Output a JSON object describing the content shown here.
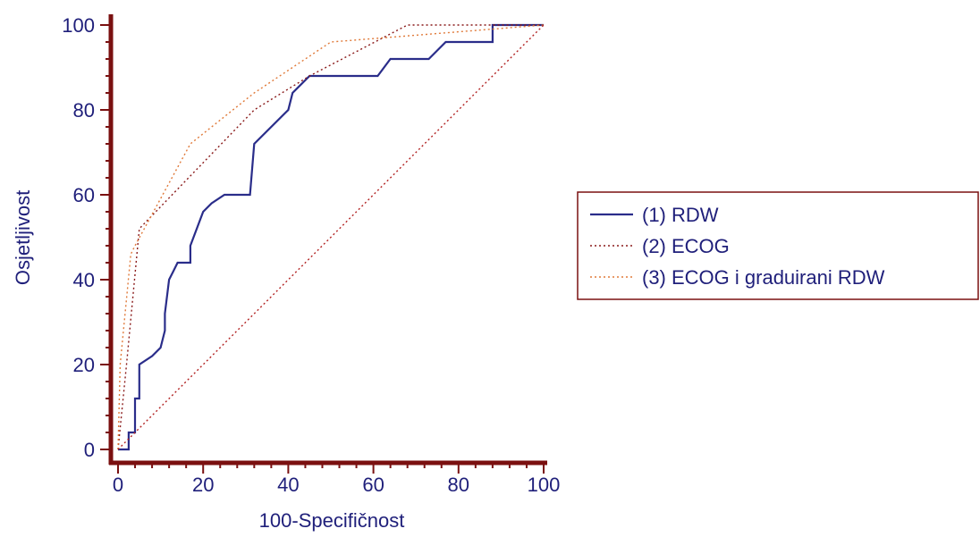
{
  "chart_data": {
    "type": "line",
    "title": "",
    "xlabel": "100-Specifičnost",
    "ylabel": "Osjetljivost",
    "xlim": [
      0,
      100
    ],
    "ylim": [
      0,
      100
    ],
    "x_ticks": [
      0,
      20,
      40,
      60,
      80,
      100
    ],
    "y_ticks": [
      0,
      20,
      40,
      60,
      80,
      100
    ],
    "grid": false,
    "legend_position": "right",
    "colors": {
      "axis": "#7a1010",
      "text": "#1f1f7a"
    },
    "series": [
      {
        "name": "(1) RDW",
        "color": "#2a2d8a",
        "style": "solid",
        "x": [
          0,
          2.5,
          2.5,
          4,
          4,
          5,
          5,
          8,
          10,
          10.5,
          11,
          11,
          12,
          13,
          14,
          17,
          17,
          20,
          20,
          22,
          25,
          31,
          32,
          40,
          41,
          45,
          61,
          64,
          73,
          75,
          77,
          85,
          88,
          88,
          100
        ],
        "y": [
          0,
          0,
          4,
          4,
          12,
          12,
          20,
          22,
          24,
          26,
          28,
          32,
          40,
          42,
          44,
          44,
          48,
          56,
          56,
          58,
          60,
          60,
          72,
          80,
          84,
          88,
          88,
          92,
          92,
          94,
          96,
          96,
          96,
          100,
          100
        ]
      },
      {
        "name": "(2) ECOG",
        "color": "#8a1a1a",
        "style": "dotted",
        "x": [
          0,
          2,
          5,
          32,
          45,
          68,
          100
        ],
        "y": [
          0,
          20,
          52,
          80,
          88,
          100,
          100
        ]
      },
      {
        "name": "(3) ECOG i graduirani RDW",
        "color": "#e07a3a",
        "style": "dotted",
        "x": [
          0,
          0.5,
          3,
          4,
          17,
          32,
          50,
          100
        ],
        "y": [
          0,
          20,
          46,
          48,
          72,
          84,
          96,
          100
        ]
      },
      {
        "name": "",
        "color": "#b22222",
        "style": "dotted",
        "x": [
          0,
          100
        ],
        "y": [
          0,
          100
        ]
      }
    ]
  }
}
